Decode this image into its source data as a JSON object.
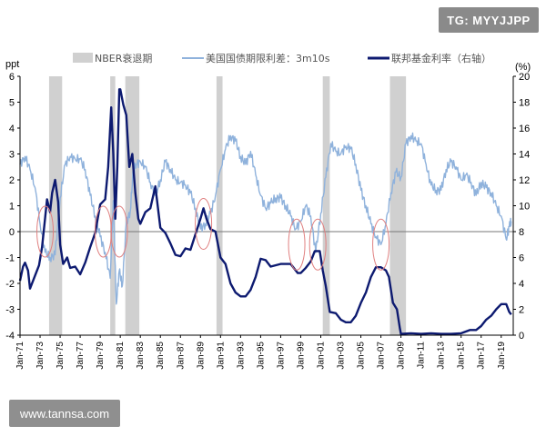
{
  "badges": {
    "telegram": "TG: MYYJJPP",
    "website": "www.tannsa.com"
  },
  "chart_data": {
    "type": "line",
    "left_axis_label": "ppt",
    "right_axis_label": "(%)",
    "left_ylim": [
      -4,
      6
    ],
    "left_ticks": [
      "6",
      "5",
      "4",
      "3",
      "2",
      "1",
      "0",
      "-1",
      "-2",
      "-3",
      "-4"
    ],
    "right_ylim": [
      0,
      20
    ],
    "right_ticks": [
      "20",
      "18",
      "16",
      "14",
      "12",
      "10",
      "8",
      "6",
      "4",
      "2",
      "0"
    ],
    "x_range": [
      1971.0,
      2020.2
    ],
    "x_tick_labels": [
      "Jan-71",
      "Jan-73",
      "Jan-75",
      "Jan-77",
      "Jan-79",
      "Jan-81",
      "Jan-83",
      "Jan-85",
      "Jan-87",
      "Jan-89",
      "Jan-91",
      "Jan-93",
      "Jan-95",
      "Jan-97",
      "Jan-99",
      "Jan-01",
      "Jan-03",
      "Jan-05",
      "Jan-07",
      "Jan-09",
      "Jan-11",
      "Jan-13",
      "Jan-15",
      "Jan-17",
      "Jan-19"
    ],
    "x_tick_years": [
      1971,
      1973,
      1975,
      1977,
      1979,
      1981,
      1983,
      1985,
      1987,
      1989,
      1991,
      1993,
      1995,
      1997,
      1999,
      2001,
      2003,
      2005,
      2007,
      2009,
      2011,
      2013,
      2015,
      2017,
      2019
    ],
    "legend": {
      "recession": "NBER衰退期",
      "spread": "美国国债期限利差：3m10s",
      "fed_funds": "联邦基金利率（右轴）"
    },
    "colors": {
      "recession": "#d0d0d0",
      "spread": "#8fb2dc",
      "fed_funds": "#0d1a70",
      "zero_line": "#777777",
      "ellipse": "#e08080"
    },
    "recessions": [
      [
        1973.9,
        1975.2
      ],
      [
        1980.0,
        1980.5
      ],
      [
        1981.5,
        1982.9
      ],
      [
        1990.6,
        1991.2
      ],
      [
        2001.2,
        2001.9
      ],
      [
        2007.9,
        2009.5
      ]
    ],
    "inversion_markers": [
      [
        1973.5,
        0.0
      ],
      [
        1979.3,
        0.0
      ],
      [
        1980.9,
        0.0
      ],
      [
        1989.3,
        0.3
      ],
      [
        1998.6,
        -0.5
      ],
      [
        2000.7,
        -0.5
      ],
      [
        2007.0,
        -0.5
      ]
    ],
    "series": [
      {
        "name": "美国国债期限利差：3m10s",
        "axis": "left",
        "x": [
          1971.0,
          1971.5,
          1972.0,
          1972.5,
          1973.0,
          1973.5,
          1974.0,
          1974.5,
          1975.0,
          1975.5,
          1976.0,
          1976.5,
          1977.0,
          1977.5,
          1978.0,
          1978.5,
          1979.0,
          1979.5,
          1980.0,
          1980.3,
          1980.6,
          1980.9,
          1981.2,
          1981.6,
          1982.0,
          1982.3,
          1982.6,
          1983.0,
          1983.5,
          1984.0,
          1984.5,
          1985.0,
          1985.5,
          1986.0,
          1986.5,
          1987.0,
          1987.5,
          1988.0,
          1988.5,
          1989.0,
          1989.5,
          1990.0,
          1990.5,
          1991.0,
          1991.5,
          1992.0,
          1992.5,
          1993.0,
          1993.5,
          1994.0,
          1994.5,
          1995.0,
          1995.5,
          1996.0,
          1996.5,
          1997.0,
          1997.5,
          1998.0,
          1998.5,
          1999.0,
          1999.5,
          2000.0,
          2000.5,
          2001.0,
          2001.5,
          2002.0,
          2002.5,
          2003.0,
          2003.5,
          2004.0,
          2004.5,
          2005.0,
          2005.5,
          2006.0,
          2006.5,
          2007.0,
          2007.5,
          2008.0,
          2008.5,
          2009.0,
          2009.5,
          2010.0,
          2010.5,
          2011.0,
          2011.5,
          2012.0,
          2012.5,
          2013.0,
          2013.5,
          2014.0,
          2014.5,
          2015.0,
          2015.5,
          2016.0,
          2016.5,
          2017.0,
          2017.5,
          2018.0,
          2018.5,
          2019.0,
          2019.5,
          2019.8,
          2020.0
        ],
        "y": [
          2.6,
          2.9,
          2.4,
          1.7,
          0.3,
          -0.8,
          -1.0,
          -0.9,
          1.3,
          2.6,
          2.9,
          2.8,
          2.8,
          2.4,
          1.4,
          0.6,
          -0.2,
          -0.8,
          -1.8,
          1.2,
          -2.8,
          -1.5,
          -2.1,
          0.3,
          0.8,
          2.4,
          2.6,
          2.7,
          2.5,
          1.9,
          1.4,
          2.0,
          2.7,
          2.4,
          2.0,
          1.9,
          1.8,
          1.5,
          0.9,
          0.1,
          0.3,
          0.7,
          1.4,
          2.4,
          3.2,
          3.7,
          3.5,
          2.9,
          2.6,
          3.1,
          2.2,
          1.4,
          0.9,
          1.1,
          1.3,
          1.3,
          1.0,
          0.6,
          0.1,
          0.4,
          1.0,
          0.6,
          -0.8,
          0.7,
          2.1,
          3.4,
          3.1,
          3.0,
          3.3,
          3.2,
          2.6,
          1.6,
          1.0,
          0.3,
          -0.2,
          -0.5,
          0.3,
          1.5,
          2.3,
          2.1,
          3.4,
          3.7,
          3.5,
          3.4,
          2.6,
          1.8,
          1.6,
          1.6,
          2.4,
          2.7,
          2.5,
          2.0,
          2.2,
          1.9,
          1.4,
          1.9,
          1.7,
          1.5,
          1.0,
          0.6,
          -0.3,
          0.2,
          0.4
        ]
      },
      {
        "name": "联邦基金利率（右轴）",
        "axis": "right",
        "x": [
          1971.0,
          1971.3,
          1971.5,
          1971.8,
          1972.0,
          1972.5,
          1972.9,
          1973.2,
          1973.5,
          1973.7,
          1974.0,
          1974.2,
          1974.5,
          1974.8,
          1975.0,
          1975.3,
          1975.7,
          1976.0,
          1976.5,
          1977.0,
          1977.5,
          1978.0,
          1978.5,
          1979.0,
          1979.5,
          1979.8,
          1980.1,
          1980.3,
          1980.5,
          1980.7,
          1980.9,
          1981.0,
          1981.3,
          1981.6,
          1981.9,
          1982.2,
          1982.5,
          1982.8,
          1983.0,
          1983.5,
          1984.0,
          1984.5,
          1985.0,
          1985.5,
          1986.0,
          1986.5,
          1987.0,
          1987.5,
          1988.0,
          1988.5,
          1989.0,
          1989.3,
          1989.6,
          1990.0,
          1990.5,
          1991.0,
          1991.5,
          1992.0,
          1992.5,
          1993.0,
          1993.5,
          1994.0,
          1994.5,
          1995.0,
          1995.5,
          1996.0,
          1997.0,
          1998.0,
          1998.7,
          1999.0,
          1999.5,
          2000.0,
          2000.4,
          2000.9,
          2001.2,
          2001.5,
          2001.9,
          2002.5,
          2003.0,
          2003.5,
          2004.0,
          2004.5,
          2005.0,
          2005.5,
          2006.0,
          2006.5,
          2007.0,
          2007.5,
          2007.8,
          2008.2,
          2008.6,
          2008.9,
          2009.0,
          2010.0,
          2011.0,
          2012.0,
          2013.0,
          2014.0,
          2015.0,
          2015.9,
          2016.5,
          2017.0,
          2017.5,
          2018.0,
          2018.5,
          2019.0,
          2019.5,
          2019.8,
          2020.0
        ],
        "y": [
          4.2,
          5.3,
          5.6,
          5.0,
          3.6,
          4.6,
          5.4,
          6.8,
          9.0,
          10.5,
          9.5,
          11.0,
          12.0,
          10.3,
          7.0,
          5.5,
          6.0,
          5.2,
          5.3,
          4.7,
          5.6,
          6.8,
          7.9,
          10.1,
          10.5,
          13.0,
          17.6,
          14.0,
          9.0,
          13.0,
          19.0,
          19.0,
          17.8,
          17.0,
          13.0,
          14.0,
          11.0,
          9.0,
          8.6,
          9.5,
          9.8,
          11.5,
          8.3,
          7.9,
          7.1,
          6.2,
          6.1,
          6.7,
          6.6,
          7.8,
          9.0,
          9.8,
          9.0,
          8.2,
          8.0,
          6.0,
          5.5,
          4.0,
          3.3,
          3.0,
          3.0,
          3.5,
          4.5,
          5.9,
          5.8,
          5.3,
          5.5,
          5.5,
          4.8,
          4.8,
          5.2,
          5.7,
          6.5,
          6.5,
          5.0,
          3.8,
          1.8,
          1.7,
          1.2,
          1.0,
          1.0,
          1.5,
          2.5,
          3.3,
          4.5,
          5.25,
          5.25,
          5.0,
          4.5,
          2.5,
          2.0,
          0.5,
          0.1,
          0.15,
          0.1,
          0.15,
          0.1,
          0.1,
          0.15,
          0.4,
          0.4,
          0.7,
          1.2,
          1.5,
          2.0,
          2.4,
          2.4,
          1.8,
          1.6
        ]
      }
    ]
  }
}
